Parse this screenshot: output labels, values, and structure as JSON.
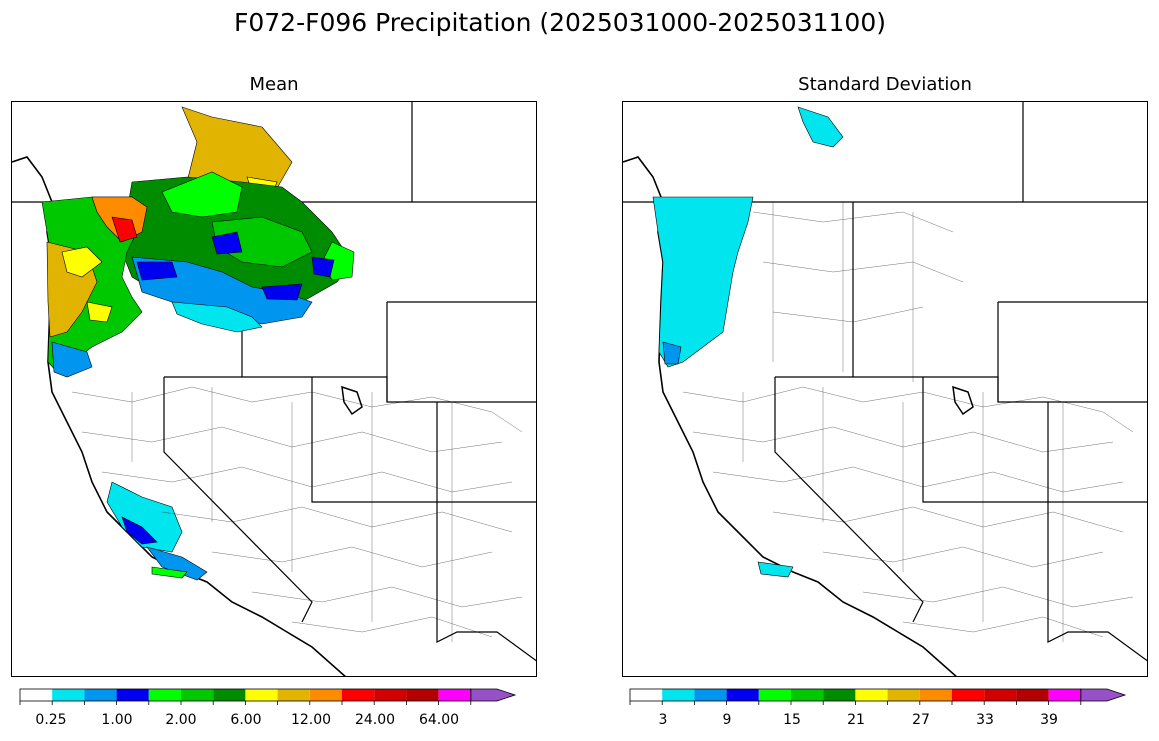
{
  "title": "F072-F096 Precipitation (2025031000-2025031100)",
  "panels": [
    {
      "subtitle": "Mean"
    },
    {
      "subtitle": "Standard Deviation"
    }
  ],
  "colorbar_colors": [
    "#ffffff",
    "#00e5ee",
    "#0096f0",
    "#0000f0",
    "#00ff00",
    "#00c800",
    "#008c00",
    "#ffff00",
    "#e0b400",
    "#ff8c00",
    "#ff0000",
    "#d20000",
    "#b40000",
    "#ff00ff",
    "#9650c8"
  ],
  "mean_colorbar": {
    "tick_labels": [
      "0.25",
      "1.00",
      "2.00",
      "6.00",
      "12.00",
      "24.00",
      "64.00"
    ]
  },
  "std_colorbar": {
    "tick_labels": [
      "3",
      "9",
      "15",
      "21",
      "27",
      "33",
      "39"
    ]
  }
}
